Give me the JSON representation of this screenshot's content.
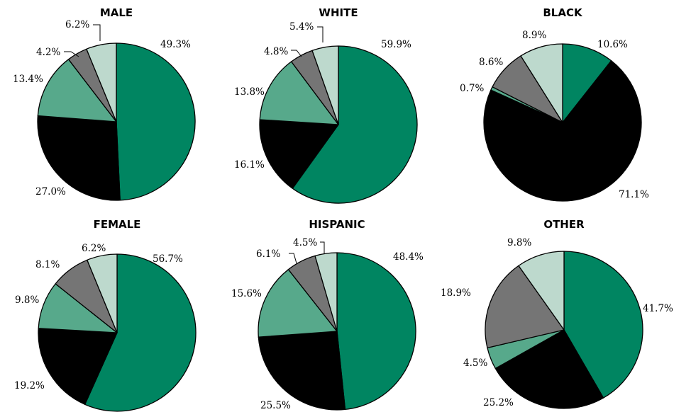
{
  "chart_data": [
    {
      "type": "pie",
      "title": "MALE",
      "slices": [
        {
          "value": 49.3,
          "label": "49.3%",
          "color": "#008561"
        },
        {
          "value": 27.0,
          "label": "27.0%",
          "color": "#000000"
        },
        {
          "value": 13.4,
          "label": "13.4%",
          "color": "#57a98b"
        },
        {
          "value": 4.2,
          "label": "4.2%",
          "color": "#757575"
        },
        {
          "value": 6.2,
          "label": "6.2%",
          "color": "#bdd9cd"
        }
      ]
    },
    {
      "type": "pie",
      "title": "WHITE",
      "slices": [
        {
          "value": 59.9,
          "label": "59.9%",
          "color": "#008561"
        },
        {
          "value": 16.1,
          "label": "16.1%",
          "color": "#000000"
        },
        {
          "value": 13.8,
          "label": "13.8%",
          "color": "#57a98b"
        },
        {
          "value": 4.8,
          "label": "4.8%",
          "color": "#757575"
        },
        {
          "value": 5.4,
          "label": "5.4%",
          "color": "#bdd9cd"
        }
      ]
    },
    {
      "type": "pie",
      "title": "BLACK",
      "slices": [
        {
          "value": 10.6,
          "label": "10.6%",
          "color": "#008561"
        },
        {
          "value": 71.1,
          "label": "71.1%",
          "color": "#000000"
        },
        {
          "value": 0.7,
          "label": "0.7%",
          "color": "#57a98b"
        },
        {
          "value": 8.6,
          "label": "8.6%",
          "color": "#757575"
        },
        {
          "value": 8.9,
          "label": "8.9%",
          "color": "#bdd9cd"
        }
      ]
    },
    {
      "type": "pie",
      "title": "FEMALE",
      "slices": [
        {
          "value": 56.7,
          "label": "56.7%",
          "color": "#008561"
        },
        {
          "value": 19.2,
          "label": "19.2%",
          "color": "#000000"
        },
        {
          "value": 9.8,
          "label": "9.8%",
          "color": "#57a98b"
        },
        {
          "value": 8.1,
          "label": "8.1%",
          "color": "#757575"
        },
        {
          "value": 6.2,
          "label": "6.2%",
          "color": "#bdd9cd"
        }
      ]
    },
    {
      "type": "pie",
      "title": "HISPANIC",
      "slices": [
        {
          "value": 48.4,
          "label": "48.4%",
          "color": "#008561"
        },
        {
          "value": 25.5,
          "label": "25.5%",
          "color": "#000000"
        },
        {
          "value": 15.6,
          "label": "15.6%",
          "color": "#57a98b"
        },
        {
          "value": 6.1,
          "label": "6.1%",
          "color": "#757575"
        },
        {
          "value": 4.5,
          "label": "4.5%",
          "color": "#bdd9cd"
        }
      ]
    },
    {
      "type": "pie",
      "title": "OTHER",
      "slices": [
        {
          "value": 41.7,
          "label": "41.7%",
          "color": "#008561"
        },
        {
          "value": 25.2,
          "label": "25.2%",
          "color": "#000000"
        },
        {
          "value": 4.5,
          "label": "4.5%",
          "color": "#57a98b"
        },
        {
          "value": 18.9,
          "label": "18.9%",
          "color": "#757575"
        },
        {
          "value": 9.8,
          "label": "9.8%",
          "color": "#bdd9cd"
        }
      ]
    }
  ]
}
